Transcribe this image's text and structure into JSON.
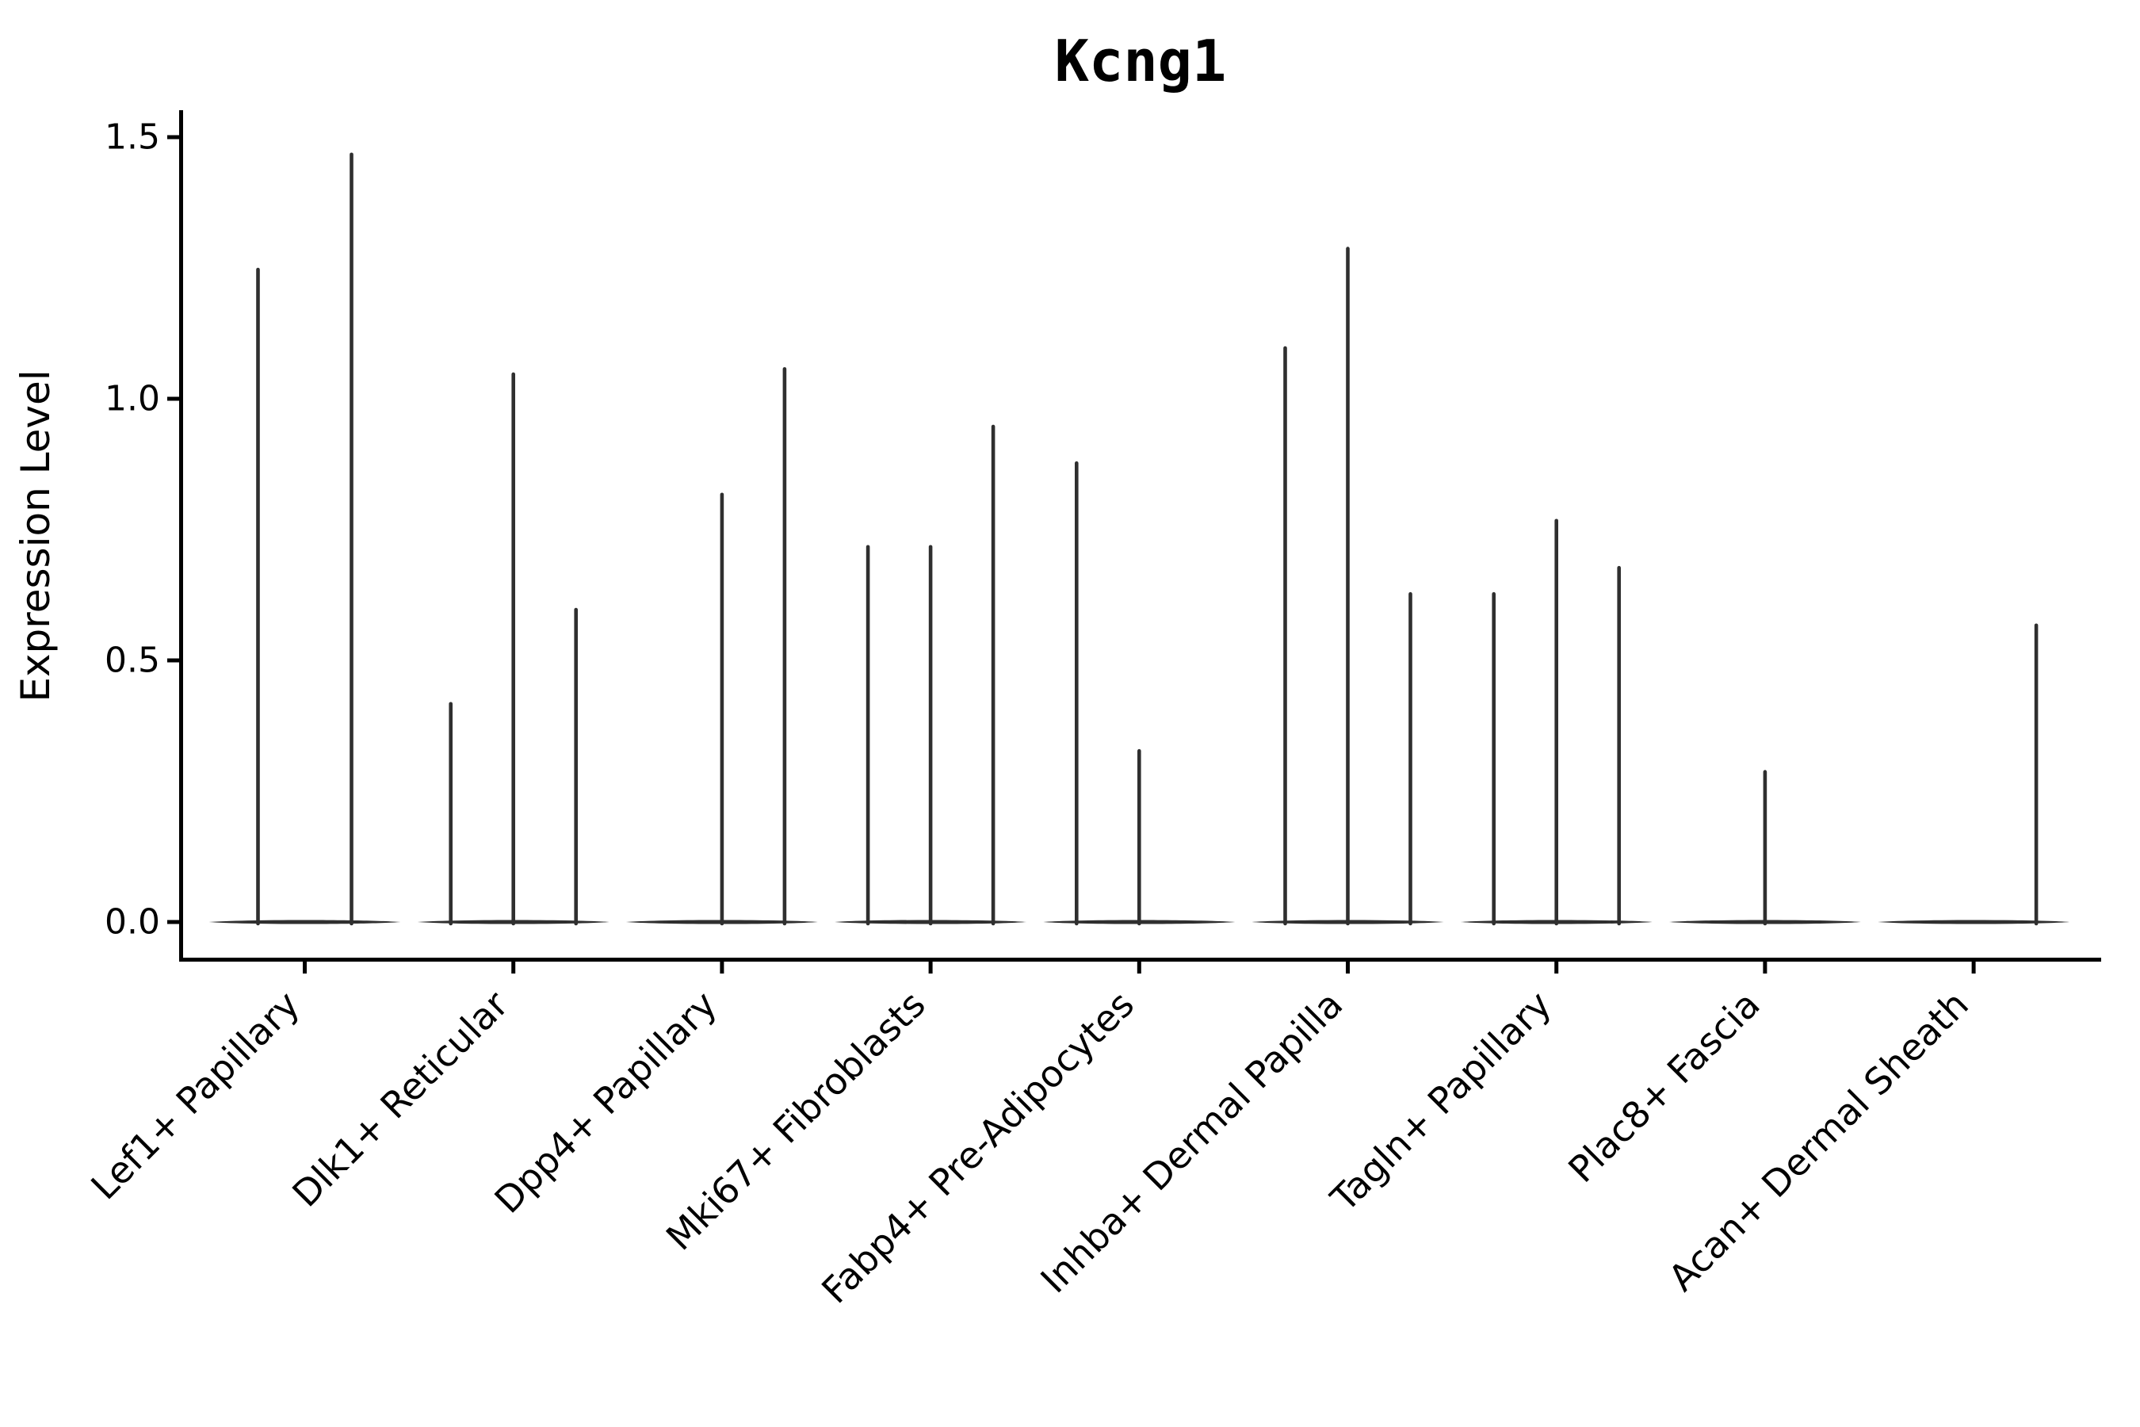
{
  "chart_data": {
    "type": "violin",
    "title": "Kcng1",
    "xlabel": "",
    "ylabel": "Expression Level",
    "grid": false,
    "legend": null,
    "background_color": "#ffffff",
    "violin_color": "#2f2f2f",
    "axis_color": "#000000",
    "ylim": [
      -0.074,
      1.548
    ],
    "ytick_values": [
      0.0,
      0.5,
      1.0,
      1.5
    ],
    "ytick_labels": [
      "0.0",
      "0.5",
      "1.0",
      "1.5"
    ],
    "xtick_rotation": 45,
    "categories": [
      "Lef1+ Papillary",
      "Dlk1+ Reticular",
      "Dpp4+ Papillary",
      "Mki67+ Fibroblasts",
      "Fabp4+ Pre-Adipocytes",
      "Inhba+ Dermal Papilla",
      "Tagln+ Papillary",
      "Plac8+ Fascia",
      "Acan+ Dermal Sheath"
    ],
    "series": [
      {
        "category": "Lef1+ Papillary",
        "spikes": [
          {
            "dx": -59,
            "value": 1.25
          },
          {
            "dx": 59,
            "value": 1.47
          }
        ]
      },
      {
        "category": "Dlk1+ Reticular",
        "spikes": [
          {
            "dx": -79,
            "value": 0.42
          },
          {
            "dx": 0,
            "value": 1.05
          },
          {
            "dx": 79,
            "value": 0.6
          }
        ]
      },
      {
        "category": "Dpp4+ Papillary",
        "spikes": [
          {
            "dx": 0,
            "value": 0.82
          },
          {
            "dx": 79,
            "value": 1.06
          }
        ]
      },
      {
        "category": "Mki67+ Fibroblasts",
        "spikes": [
          {
            "dx": -79,
            "value": 0.72
          },
          {
            "dx": 0,
            "value": 0.72
          },
          {
            "dx": 79,
            "value": 0.95
          }
        ]
      },
      {
        "category": "Fabp4+ Pre-Adipocytes",
        "spikes": [
          {
            "dx": -79,
            "value": 0.88
          },
          {
            "dx": 0,
            "value": 0.33
          }
        ]
      },
      {
        "category": "Inhba+ Dermal Papilla",
        "spikes": [
          {
            "dx": -79,
            "value": 1.1
          },
          {
            "dx": 0,
            "value": 1.29
          },
          {
            "dx": 79,
            "value": 0.63
          }
        ]
      },
      {
        "category": "Tagln+ Papillary",
        "spikes": [
          {
            "dx": -79,
            "value": 0.63
          },
          {
            "dx": 0,
            "value": 0.77
          },
          {
            "dx": 79,
            "value": 0.68
          }
        ]
      },
      {
        "category": "Plac8+ Fascia",
        "spikes": [
          {
            "dx": 0,
            "value": 0.29
          }
        ]
      },
      {
        "category": "Acan+ Dermal Sheath",
        "spikes": [
          {
            "dx": 79,
            "value": 0.57
          }
        ]
      }
    ]
  }
}
